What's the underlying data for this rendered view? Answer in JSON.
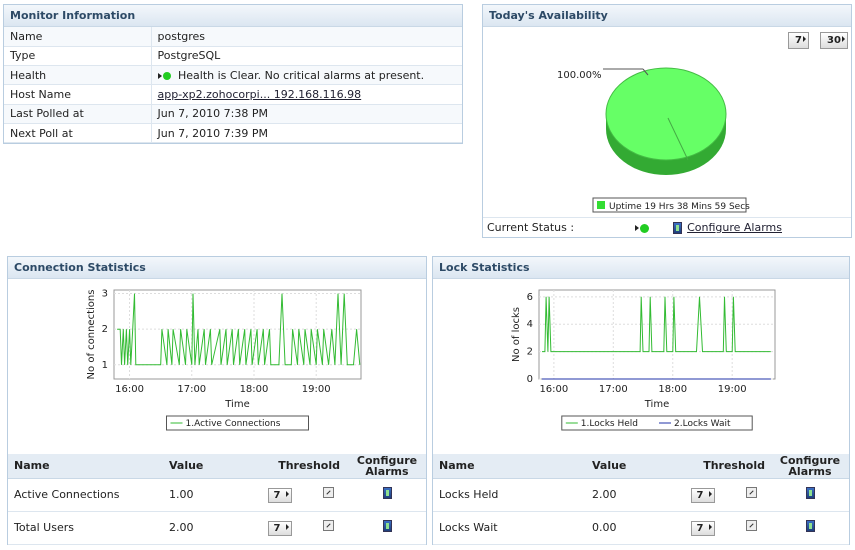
{
  "monitor": {
    "title": "Monitor Information",
    "rows": [
      {
        "key": "Name",
        "value": "postgres"
      },
      {
        "key": "Type",
        "value": "PostgreSQL"
      },
      {
        "key": "Health",
        "value": "Health is Clear. No critical alarms at present."
      },
      {
        "key": "Host Name",
        "value": "app-xp2.zohocorpi... 192.168.116.98"
      },
      {
        "key": "Last Polled at",
        "value": "Jun 7, 2010 7:38 PM"
      },
      {
        "key": "Next Poll at",
        "value": "Jun 7, 2010 7:39 PM"
      }
    ],
    "health_color": "#22cc22"
  },
  "availability": {
    "title": "Today's Availability",
    "btn_7": "7",
    "btn_30": "30",
    "pie_label": "100.00%",
    "legend": "Uptime 19 Hrs 38 Mins 59 Secs",
    "pie_color": "#66ff66",
    "current_status_label": "Current Status :",
    "configure_alarms": "Configure Alarms"
  },
  "connection": {
    "title": "Connection Statistics",
    "headers": {
      "name": "Name",
      "value": "Value",
      "threshold": "Threshold",
      "configure": "Configure Alarms"
    },
    "rows": [
      {
        "name": "Active Connections",
        "value": "1.00",
        "period": "7"
      },
      {
        "name": "Total Users",
        "value": "2.00",
        "period": "7"
      }
    ]
  },
  "lock": {
    "title": "Lock Statistics",
    "headers": {
      "name": "Name",
      "value": "Value",
      "threshold": "Threshold",
      "configure": "Configure Alarms"
    },
    "rows": [
      {
        "name": "Locks Held",
        "value": "2.00",
        "period": "7"
      },
      {
        "name": "Locks Wait",
        "value": "0.00",
        "period": "7"
      }
    ]
  },
  "chart_data": [
    {
      "type": "line",
      "xlabel": "Time",
      "ylabel": "No of connections",
      "x_ticks": [
        "16:00",
        "17:00",
        "18:00",
        "19:00"
      ],
      "y_ticks": [
        1,
        2,
        3
      ],
      "xlim": [
        15.75,
        19.72
      ],
      "ylim": [
        0.6,
        3.1
      ],
      "grid": true,
      "legend": "bottom",
      "series": [
        {
          "name": "1.Active Connections",
          "color": "#33bb33",
          "x": [
            15.8,
            15.85,
            15.87,
            15.9,
            15.92,
            15.95,
            15.97,
            16.0,
            16.02,
            16.05,
            16.08,
            16.1,
            16.5,
            16.52,
            16.6,
            16.62,
            16.68,
            16.7,
            16.8,
            16.82,
            16.9,
            16.92,
            17.0,
            17.02,
            17.05,
            17.1,
            17.12,
            17.2,
            17.22,
            17.3,
            17.32,
            17.45,
            17.47,
            17.55,
            17.57,
            17.65,
            17.67,
            17.75,
            17.77,
            17.85,
            17.87,
            17.95,
            17.97,
            18.05,
            18.07,
            18.15,
            18.17,
            18.25,
            18.27,
            18.4,
            18.45,
            18.5,
            18.6,
            18.62,
            18.7,
            18.72,
            18.8,
            18.82,
            18.9,
            18.92,
            19.0,
            19.02,
            19.1,
            19.12,
            19.2,
            19.25,
            19.3,
            19.35,
            19.4,
            19.45,
            19.5,
            19.6,
            19.65,
            19.7
          ],
          "values": [
            2,
            2,
            1,
            2,
            1,
            2,
            1,
            2,
            1,
            2,
            3,
            1,
            1,
            2,
            1,
            2,
            1,
            2,
            1,
            2,
            1,
            2,
            1,
            3,
            1,
            2,
            1,
            2,
            1,
            2,
            1,
            2,
            1,
            2,
            1,
            2,
            1,
            2,
            1,
            2,
            1,
            2,
            1,
            2,
            1,
            2,
            1,
            2,
            1,
            1,
            3,
            1,
            1,
            2,
            1,
            2,
            1,
            2,
            1,
            2,
            1,
            2,
            1,
            2,
            1,
            2,
            1,
            3,
            1,
            3,
            1,
            1,
            2,
            1
          ]
        }
      ]
    },
    {
      "type": "line",
      "xlabel": "Time",
      "ylabel": "No of locks",
      "x_ticks": [
        "16:00",
        "17:00",
        "18:00",
        "19:00"
      ],
      "y_ticks": [
        0,
        2,
        4,
        6
      ],
      "xlim": [
        15.75,
        19.72
      ],
      "ylim": [
        0,
        6.5
      ],
      "grid": true,
      "legend": "bottom",
      "series": [
        {
          "name": "1.Locks Held",
          "color": "#33bb33",
          "x": [
            15.8,
            15.85,
            15.87,
            15.9,
            15.92,
            15.95,
            17.45,
            17.47,
            17.5,
            17.6,
            17.62,
            17.65,
            17.85,
            17.87,
            17.9,
            18.0,
            18.02,
            18.05,
            18.4,
            18.45,
            18.5,
            18.85,
            18.87,
            18.9,
            19.0,
            19.02,
            19.05,
            19.65
          ],
          "values": [
            2,
            2,
            6,
            2,
            6,
            2,
            2,
            6,
            2,
            2,
            6,
            2,
            2,
            6,
            2,
            2,
            6,
            2,
            2,
            6,
            2,
            2,
            6,
            2,
            2,
            6,
            2,
            2
          ]
        },
        {
          "name": "2.Locks Wait",
          "color": "#2233aa",
          "x": [
            15.8,
            19.65
          ],
          "values": [
            0,
            0
          ]
        }
      ]
    }
  ]
}
